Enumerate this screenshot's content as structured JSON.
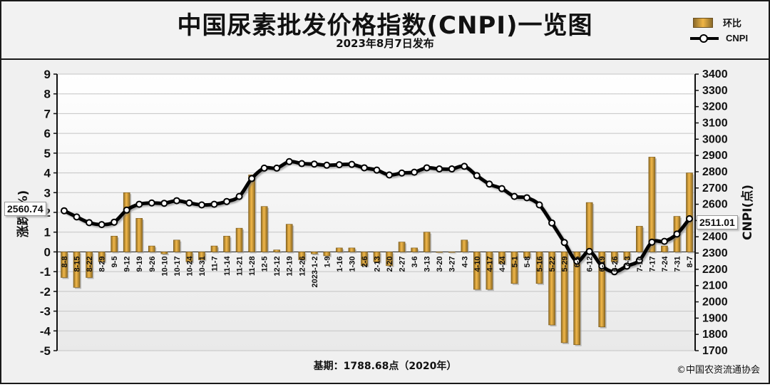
{
  "chart_data": {
    "type": "bar+line",
    "title": "中国尿素批发价格指数(CNPI)一览图",
    "subtitle": "2023年8月7日发布",
    "legend": [
      {
        "name": "环比",
        "kind": "bar",
        "color": "#e3a73a"
      },
      {
        "name": "CNPI",
        "kind": "line",
        "color": "#000000"
      }
    ],
    "legend_position": "top-right",
    "left_axis": {
      "label": "涨跌(%)",
      "min": -5,
      "max": 9,
      "ticks": [
        "-5",
        "-4",
        "-3",
        "-2",
        "-1",
        "0",
        "1",
        "2",
        "3",
        "4",
        "5",
        "6",
        "7",
        "8",
        "9"
      ]
    },
    "right_axis": {
      "label": "CNPI(点)",
      "min": 1700,
      "max": 3400,
      "ticks": [
        "1700",
        "1800",
        "1900",
        "2000",
        "2100",
        "2200",
        "2300",
        "2400",
        "2500",
        "2600",
        "2700",
        "2800",
        "2900",
        "3000",
        "3100",
        "3200",
        "3300",
        "3400"
      ]
    },
    "grid": true,
    "x_tick_labels": [
      "8-8",
      "8-15",
      "8-22",
      "8-29",
      "9-5",
      "9-12",
      "9-19",
      "9-26",
      "10-10",
      "10-17",
      "10-24",
      "10-31",
      "11-7",
      "11-14",
      "11-21",
      "11-28",
      "12-5",
      "12-12",
      "12-19",
      "12-26",
      "2023-1-2",
      "1-9",
      "1-16",
      "1-30",
      "2-6",
      "2-13",
      "2-20",
      "2-27",
      "3-6",
      "3-13",
      "3-20",
      "3-27",
      "4-3",
      "4-10",
      "4-17",
      "4-24",
      "5-1",
      "5-8",
      "5-16",
      "5-22",
      "5-29",
      "6-5",
      "6-12",
      "6-19",
      "6-26",
      "7-3",
      "7-10",
      "7-17",
      "7-24",
      "7-31",
      "8-7"
    ],
    "series": [
      {
        "name": "环比",
        "axis": "left",
        "values": [
          -1.3,
          -1.8,
          -1.3,
          -0.5,
          0.8,
          3.0,
          1.7,
          0.3,
          -0.1,
          0.6,
          -0.5,
          -0.4,
          0.3,
          0.8,
          1.2,
          3.9,
          2.3,
          0.1,
          1.4,
          -0.4,
          -0.1,
          -0.2,
          0.2,
          0.2,
          -0.7,
          -0.5,
          -0.7,
          0.5,
          0.2,
          1.0,
          0.0,
          0.0,
          0.6,
          -1.9,
          -1.9,
          -0.6,
          -1.6,
          -0.3,
          -1.6,
          -3.7,
          -4.6,
          -4.7,
          2.5,
          -3.8,
          -0.5,
          -0.4,
          1.3,
          4.8,
          0.3,
          1.8,
          4.0
        ]
      },
      {
        "name": "CNPI",
        "axis": "right",
        "values": [
          2560,
          2522,
          2487,
          2475,
          2490,
          2564,
          2600,
          2608,
          2606,
          2622,
          2608,
          2596,
          2600,
          2617,
          2648,
          2758,
          2822,
          2822,
          2862,
          2850,
          2847,
          2840,
          2843,
          2845,
          2824,
          2810,
          2780,
          2792,
          2797,
          2824,
          2817,
          2817,
          2833,
          2776,
          2724,
          2696,
          2648,
          2640,
          2596,
          2485,
          2365,
          2250,
          2310,
          2220,
          2185,
          2220,
          2255,
          2367,
          2372,
          2417,
          2511
        ]
      }
    ],
    "annotations": [
      {
        "text": "2560.74",
        "axis": "left"
      },
      {
        "text": "2511.01",
        "axis": "right"
      }
    ]
  },
  "footer": {
    "base": "基期：1788.68点（2020年）",
    "source": "©中国农资流通协会"
  }
}
